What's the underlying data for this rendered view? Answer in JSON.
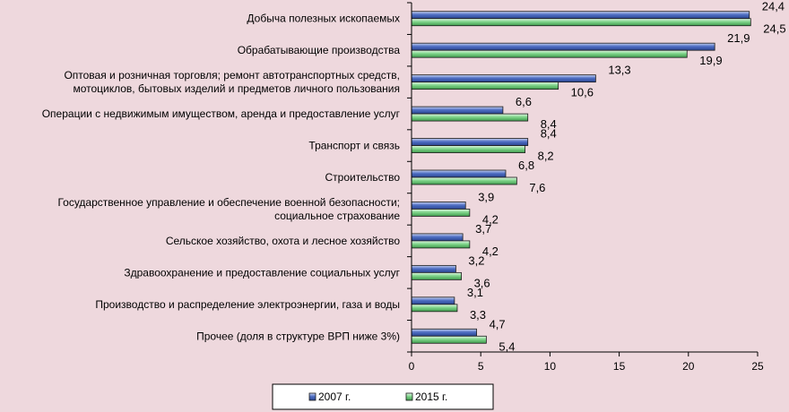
{
  "chart_data": {
    "type": "bar",
    "orientation": "horizontal",
    "categories": [
      [
        "Добыча полезных ископаемых"
      ],
      [
        "Обрабатывающие производства"
      ],
      [
        "Оптовая  и розничная торговля; ремонт автотранспортных средств,",
        "мотоциклов, бытовых изделий и предметов личного пользования"
      ],
      [
        "Операции с недвижимым имуществом, аренда и предоставление услуг"
      ],
      [
        "Транспорт и связь"
      ],
      [
        "Строительство"
      ],
      [
        "Государственное управление и обеспечение военной безопасности;",
        "социальное страхование"
      ],
      [
        "Сельское хозяйство, охота и лесное хозяйство"
      ],
      [
        "Здравоохранение и предоставление социальных услуг"
      ],
      [
        "Производство и распределение электроэнергии, газа и воды"
      ],
      [
        "Прочее (доля в структуре ВРП ниже 3%)"
      ]
    ],
    "series": [
      {
        "name": "2007 г.",
        "color": "#4f6fc4",
        "values": [
          24.4,
          21.9,
          13.3,
          6.6,
          8.4,
          6.8,
          3.9,
          3.7,
          3.2,
          3.1,
          4.7
        ],
        "labels": [
          "24,4",
          "21,9",
          "13,3",
          "6,6",
          "8,4",
          "6,8",
          "3,9",
          "3,7",
          "3,2",
          "3,1",
          "4,7"
        ]
      },
      {
        "name": "2015 г.",
        "color": "#7fd58a",
        "values": [
          24.5,
          19.9,
          10.6,
          8.4,
          8.2,
          7.6,
          4.2,
          4.2,
          3.6,
          3.3,
          5.4
        ],
        "labels": [
          "24,5",
          "19,9",
          "10,6",
          "8,4",
          "8,2",
          "7,6",
          "4,2",
          "4,2",
          "3,6",
          "3,3",
          "5,4"
        ]
      }
    ],
    "xlim": [
      0,
      25
    ],
    "xticks": [
      0,
      5,
      10,
      15,
      20,
      25
    ],
    "grid": false,
    "legend_position": "bottom"
  }
}
